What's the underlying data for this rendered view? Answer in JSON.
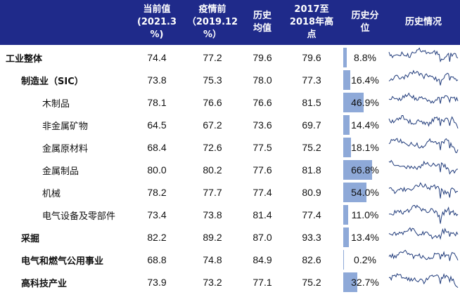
{
  "chart_data": {
    "type": "table",
    "columns": [
      "当前值\n(2021.3\n%)",
      "疫情前\n（2019.12\n%）",
      "历史\n均值",
      "2017至\n2018年高\n点",
      "历史分\n位",
      "历史情况"
    ],
    "rows": [
      {
        "name": "工业整体",
        "level": 0,
        "values": [
          "74.4",
          "77.2",
          "79.6",
          "79.6"
        ],
        "percentile": "8.8%",
        "percentile_value": 8.8
      },
      {
        "name": "制造业（SIC）",
        "level": 1,
        "values": [
          "73.8",
          "75.3",
          "78.0",
          "77.3"
        ],
        "percentile": "16.4%",
        "percentile_value": 16.4
      },
      {
        "name": "木制品",
        "level": 2,
        "values": [
          "78.1",
          "76.6",
          "76.6",
          "81.5"
        ],
        "percentile": "46.9%",
        "percentile_value": 46.9
      },
      {
        "name": "非金属矿物",
        "level": 2,
        "values": [
          "64.5",
          "67.2",
          "73.6",
          "69.7"
        ],
        "percentile": "14.4%",
        "percentile_value": 14.4
      },
      {
        "name": "金属原材料",
        "level": 2,
        "values": [
          "68.4",
          "72.6",
          "77.5",
          "75.2"
        ],
        "percentile": "18.1%",
        "percentile_value": 18.1
      },
      {
        "name": "金属制品",
        "level": 2,
        "values": [
          "80.0",
          "80.2",
          "77.6",
          "81.8"
        ],
        "percentile": "66.8%",
        "percentile_value": 66.8
      },
      {
        "name": "机械",
        "level": 2,
        "values": [
          "78.2",
          "77.7",
          "77.4",
          "80.9"
        ],
        "percentile": "54.0%",
        "percentile_value": 54.0
      },
      {
        "name": "电气设备及零部件",
        "level": 2,
        "values": [
          "73.4",
          "73.8",
          "81.4",
          "77.4"
        ],
        "percentile": "11.0%",
        "percentile_value": 11.0
      },
      {
        "name": "采掘",
        "level": 1,
        "values": [
          "82.2",
          "89.2",
          "87.0",
          "93.3"
        ],
        "percentile": "13.4%",
        "percentile_value": 13.4
      },
      {
        "name": "电气和燃气公用事业",
        "level": 1,
        "values": [
          "68.8",
          "74.8",
          "84.9",
          "82.6"
        ],
        "percentile": "0.2%",
        "percentile_value": 0.2
      },
      {
        "name": "高科技产业",
        "level": 1,
        "values": [
          "73.9",
          "73.2",
          "77.1",
          "75.2"
        ],
        "percentile": "32.7%",
        "percentile_value": 32.7
      }
    ],
    "colors": {
      "header_bg": "#1f2a8a",
      "bar": "#8ea9d8",
      "spark": "#1f3a7a"
    }
  }
}
